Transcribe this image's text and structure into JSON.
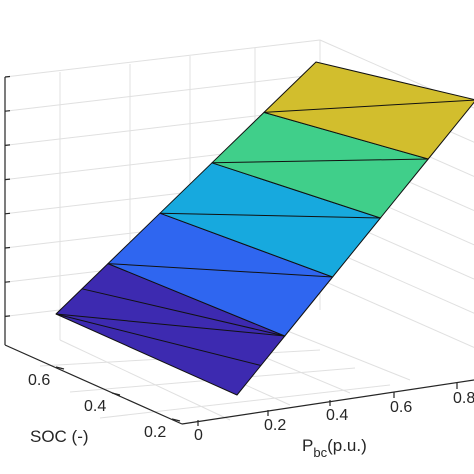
{
  "chart_data": {
    "type": "surface",
    "colormap": "parula-like flat shading",
    "colors": [
      "#3d2ab0",
      "#2f66f0",
      "#17a9de",
      "#40cf8a",
      "#d2be2d"
    ],
    "grid": true,
    "box": true,
    "xlabel_parts": {
      "main": "P",
      "sub": "bc",
      "rest": "(p.u.)"
    },
    "ylabel": "SOC (-)",
    "x_ticks": [
      "0",
      "0.2",
      "0.4",
      "0.6",
      "0.8"
    ],
    "y_ticks": [
      "0.6",
      "0.4",
      "0.2"
    ],
    "x_range": [
      0,
      1
    ],
    "y_range": [
      0.1,
      0.7
    ],
    "surface_corners": [
      {
        "x": 0.0,
        "y": 0.7,
        "z_level": 0.0
      },
      {
        "x": 0.4,
        "y": 0.1,
        "z_level": 0.04
      },
      {
        "x": 1.0,
        "y": 0.1,
        "z_level": 1.0
      },
      {
        "x": 0.6,
        "y": 0.7,
        "z_level": 0.96
      }
    ],
    "bands": 5,
    "triangulated": true
  }
}
